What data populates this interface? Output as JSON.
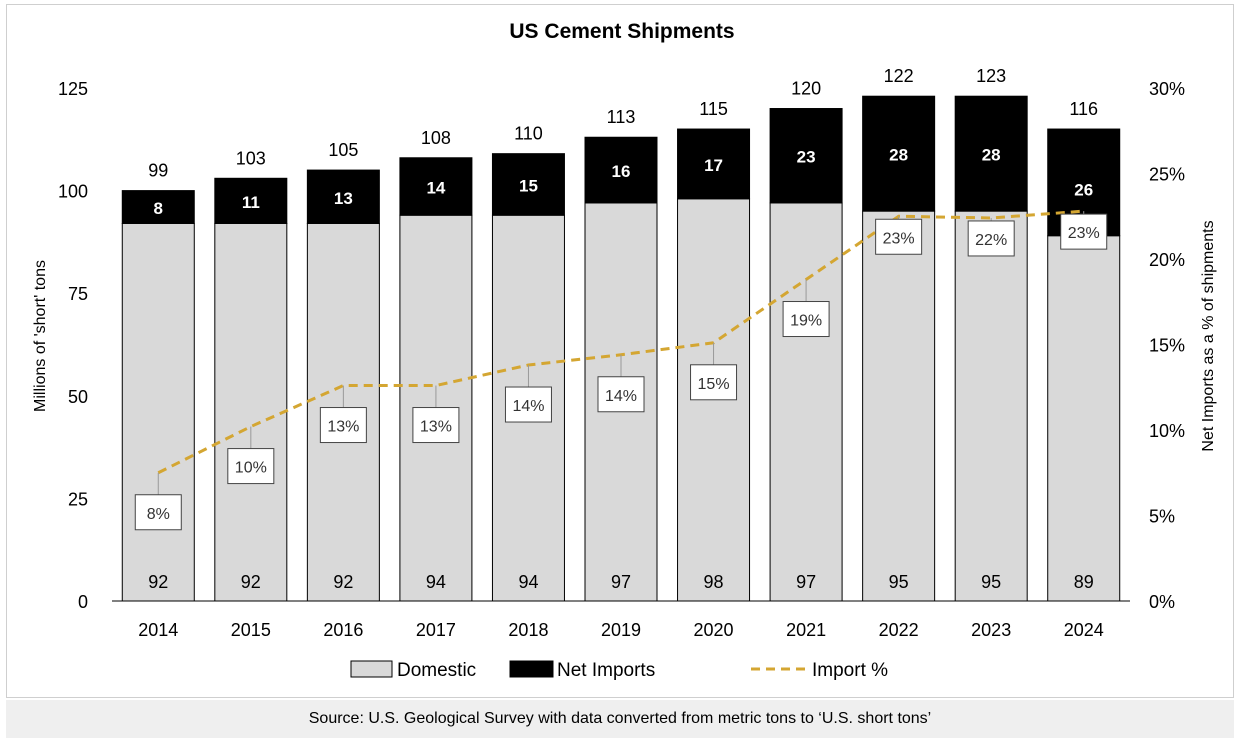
{
  "chart_data": {
    "type": "bar",
    "stacked": true,
    "title": "US Cement Shipments",
    "categories": [
      "2014",
      "2015",
      "2016",
      "2017",
      "2018",
      "2019",
      "2020",
      "2021",
      "2022",
      "2023",
      "2024"
    ],
    "series": [
      {
        "name": "Domestic",
        "axis": "left",
        "color": "#d9d9d9",
        "values": [
          92,
          92,
          92,
          94,
          94,
          97,
          98,
          97,
          95,
          95,
          89
        ]
      },
      {
        "name": "Net Imports",
        "axis": "left",
        "color": "#000000",
        "values": [
          8,
          11,
          13,
          14,
          15,
          16,
          17,
          23,
          28,
          28,
          26
        ]
      },
      {
        "name": "Import %",
        "type": "line",
        "style": "dashed",
        "axis": "right",
        "color": "#d4a632",
        "values": [
          7.5,
          10.2,
          12.6,
          12.6,
          13.8,
          14.4,
          15.1,
          18.8,
          22.5,
          22.4,
          22.8
        ],
        "labels": [
          "8%",
          "10%",
          "13%",
          "13%",
          "14%",
          "14%",
          "15%",
          "19%",
          "23%",
          "22%",
          "23%"
        ]
      }
    ],
    "totals": [
      "99",
      "103",
      "105",
      "108",
      "110",
      "113",
      "115",
      "120",
      "122",
      "123",
      "116"
    ],
    "domestic_labels": [
      "92",
      "92",
      "92",
      "94",
      "94",
      "97",
      "98",
      "97",
      "95",
      "95",
      "89"
    ],
    "import_labels": [
      "8",
      "11",
      "13",
      "14",
      "15",
      "16",
      "17",
      "23",
      "28",
      "28",
      "26"
    ],
    "ylabel": "Millions of 'short' tons",
    "ylim": [
      0,
      125
    ],
    "yticks": [
      "0",
      "25",
      "50",
      "75",
      "100",
      "125"
    ],
    "y2label": "Net Imports as a % of shipments",
    "y2lim": [
      0,
      30
    ],
    "y2ticks": [
      "0%",
      "5%",
      "10%",
      "15%",
      "20%",
      "25%",
      "30%"
    ],
    "legend": [
      "Domestic",
      "Net Imports",
      "Import %"
    ],
    "legend_position": "bottom"
  },
  "source": "Source: U.S. Geological Survey with data converted from metric tons to ‘U.S. short tons’"
}
